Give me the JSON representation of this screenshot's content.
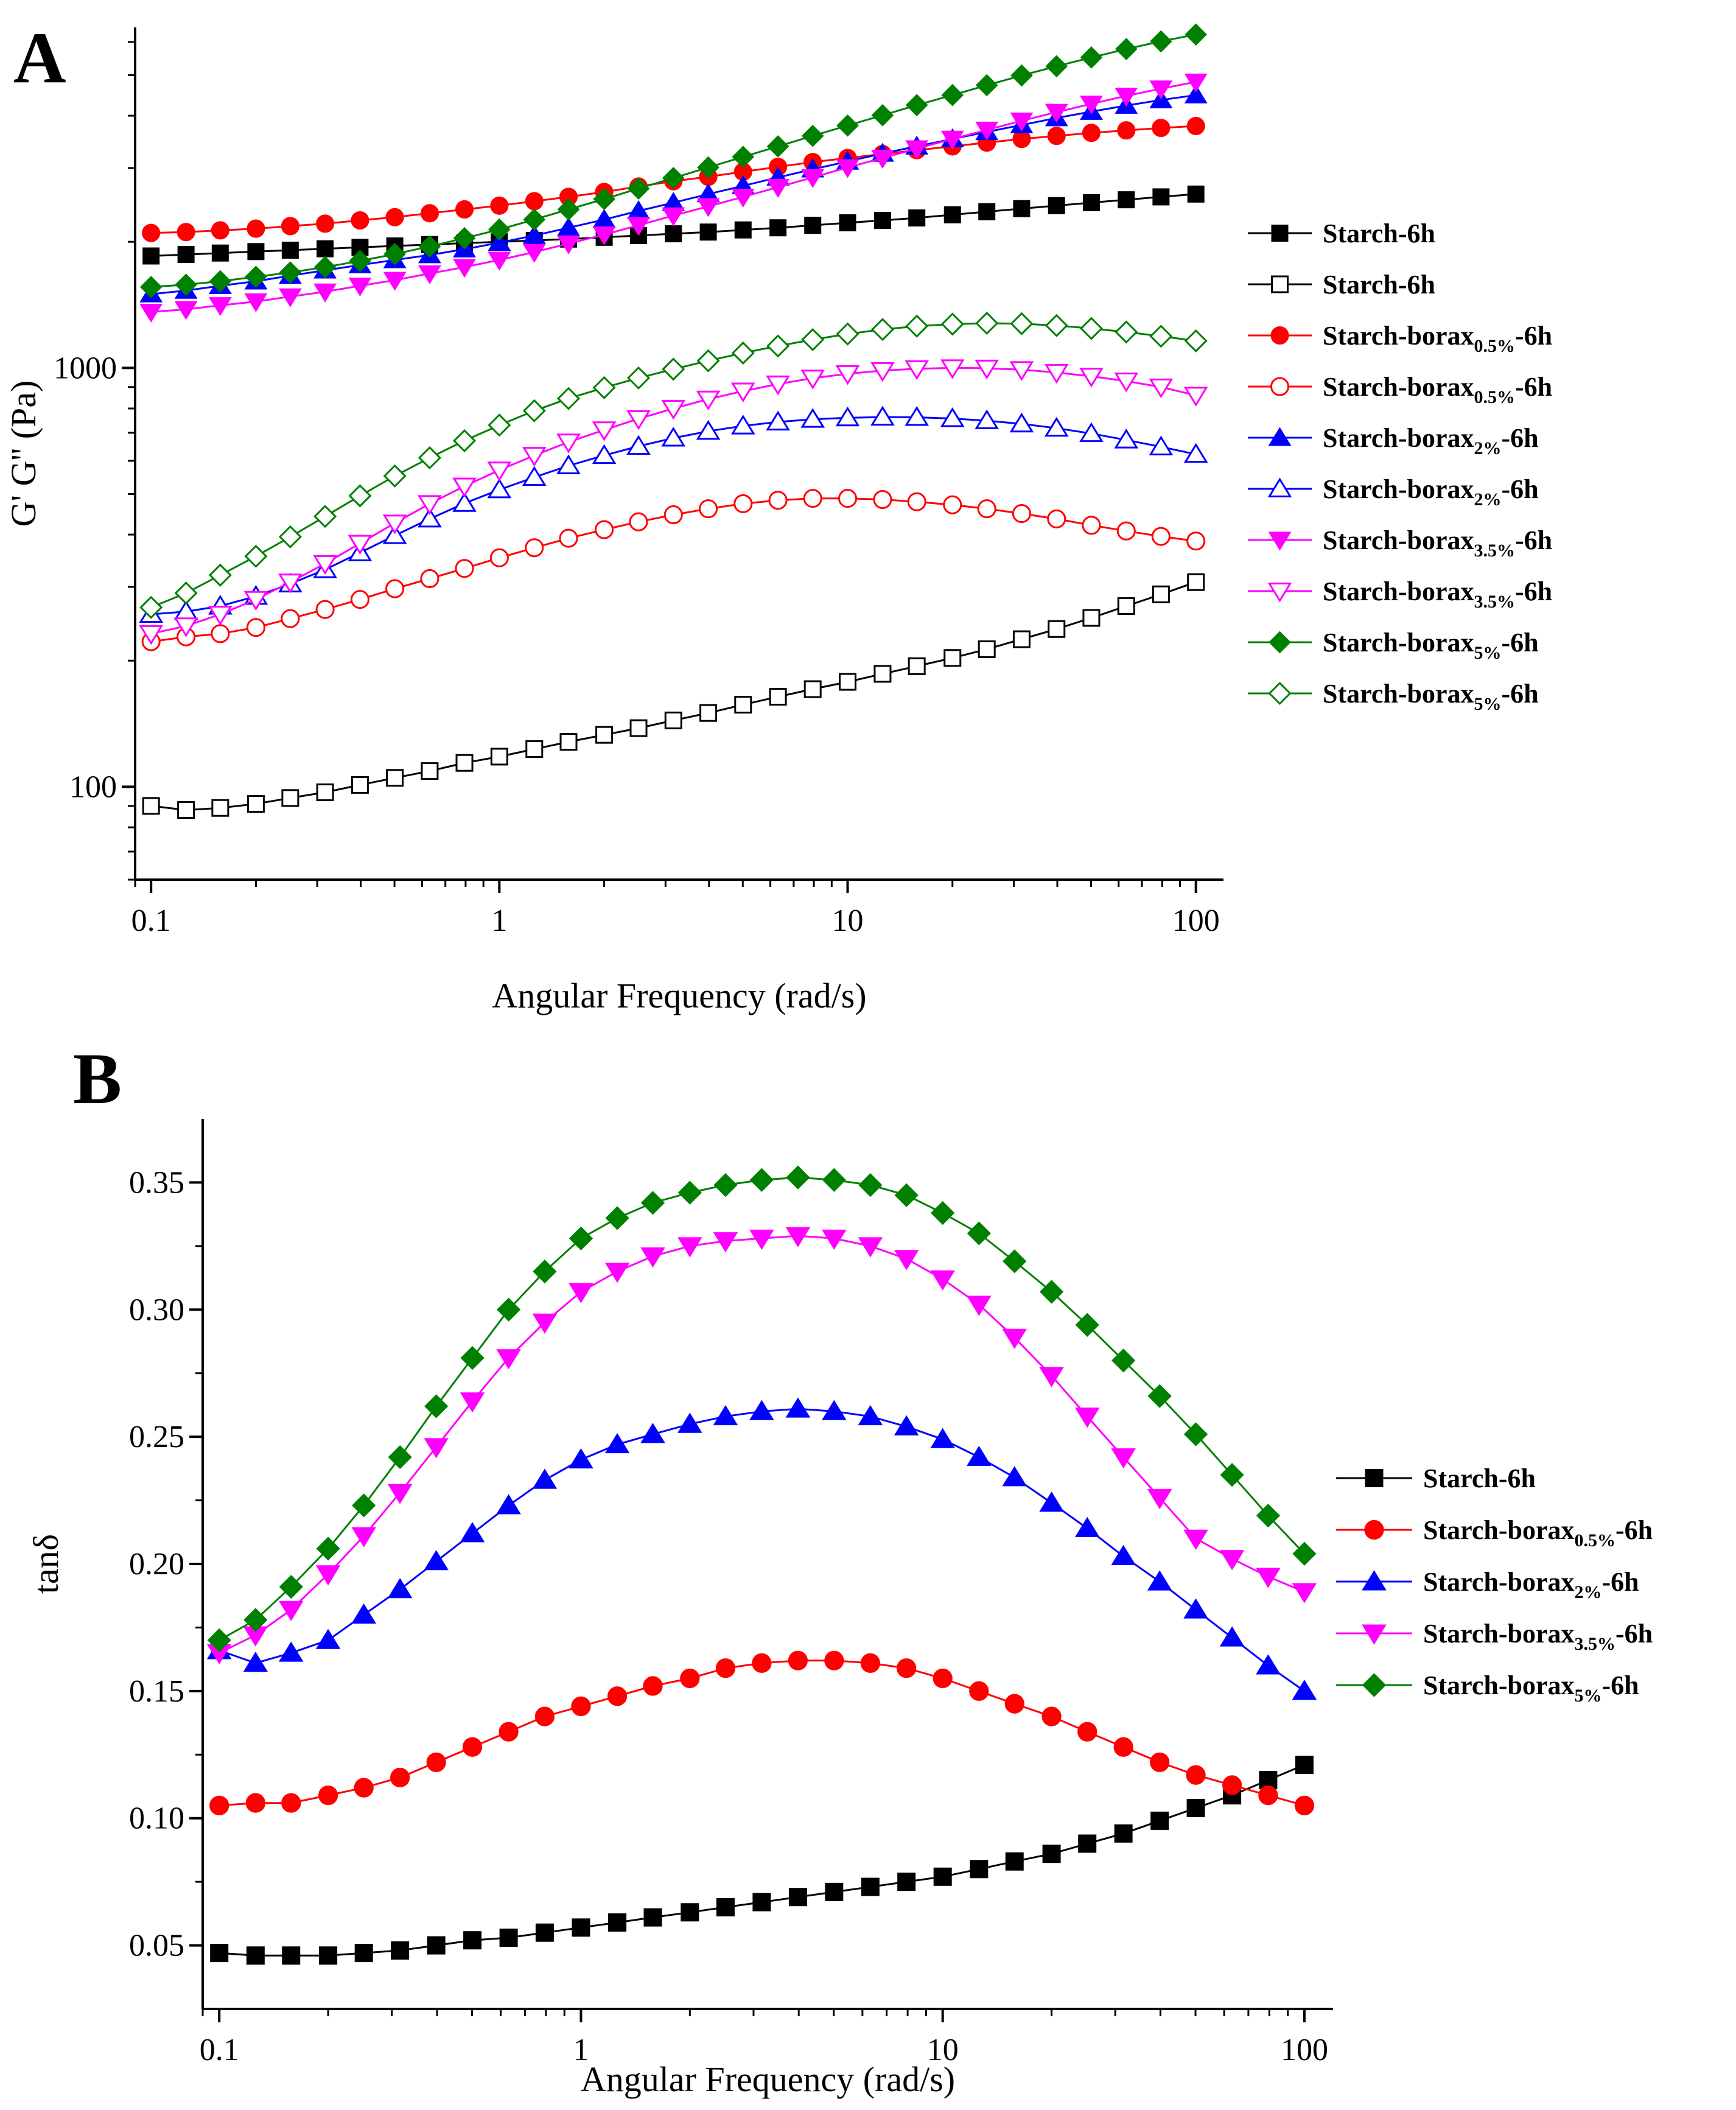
{
  "chart_data": [
    {
      "panel": "A",
      "type": "line",
      "xscale": "log",
      "yscale": "log",
      "xlabel": "Angular Frequency (rad/s)",
      "ylabel": "G' G'' (Pa)",
      "xlim": [
        0.09,
        120
      ],
      "ylim": [
        60,
        6500
      ],
      "xticks": [
        {
          "value": 0.1,
          "label": "0.1"
        },
        {
          "value": 1,
          "label": "1"
        },
        {
          "value": 10,
          "label": "10"
        },
        {
          "value": 100,
          "label": "100"
        }
      ],
      "yticks": [
        {
          "value": 100,
          "label": "100"
        },
        {
          "value": 1000,
          "label": "1000"
        }
      ],
      "legend_position": "right",
      "x": [
        0.1,
        0.126,
        0.158,
        0.2,
        0.251,
        0.316,
        0.398,
        0.501,
        0.631,
        0.794,
        1.0,
        1.26,
        1.58,
        2.0,
        2.51,
        3.16,
        3.98,
        5.01,
        6.31,
        7.94,
        10.0,
        12.6,
        15.8,
        20.0,
        25.1,
        31.6,
        39.8,
        50.1,
        63.1,
        79.4,
        100
      ],
      "series": [
        {
          "name": "Starch-6h",
          "base": "Starch",
          "sub": "",
          "suffix": "-6h",
          "color": "#000000",
          "marker": "square",
          "filled": true,
          "values": [
            1850,
            1865,
            1880,
            1895,
            1910,
            1925,
            1940,
            1955,
            1970,
            1985,
            2000,
            2015,
            2030,
            2050,
            2070,
            2090,
            2110,
            2135,
            2160,
            2190,
            2220,
            2250,
            2280,
            2320,
            2360,
            2400,
            2440,
            2480,
            2520,
            2560,
            2600
          ]
        },
        {
          "name": "Starch-6h",
          "base": "Starch",
          "sub": "",
          "suffix": "-6h",
          "color": "#000000",
          "marker": "square",
          "filled": false,
          "values": [
            90,
            88,
            89,
            91,
            94,
            97,
            101,
            105,
            109,
            114,
            118,
            123,
            128,
            133,
            138,
            144,
            150,
            157,
            164,
            171,
            178,
            186,
            194,
            203,
            213,
            225,
            238,
            253,
            270,
            288,
            308
          ]
        },
        {
          "name": "Starch-borax0.5%-6h",
          "base": "Starch-borax",
          "sub": "0.5%",
          "suffix": "-6h",
          "color": "#ff0000",
          "marker": "circle",
          "filled": true,
          "values": [
            2100,
            2110,
            2130,
            2150,
            2180,
            2210,
            2250,
            2290,
            2340,
            2390,
            2440,
            2500,
            2560,
            2630,
            2710,
            2790,
            2860,
            2940,
            3020,
            3100,
            3170,
            3240,
            3310,
            3380,
            3450,
            3520,
            3580,
            3640,
            3690,
            3740,
            3780
          ]
        },
        {
          "name": "Starch-borax0.5%-6h",
          "base": "Starch-borax",
          "sub": "0.5%",
          "suffix": "-6h",
          "color": "#ff0000",
          "marker": "circle",
          "filled": false,
          "values": [
            222,
            228,
            232,
            240,
            252,
            265,
            280,
            297,
            314,
            332,
            352,
            372,
            392,
            411,
            429,
            446,
            461,
            474,
            483,
            488,
            488,
            485,
            479,
            471,
            461,
            449,
            436,
            421,
            408,
            396,
            386
          ]
        },
        {
          "name": "Starch-borax2%-6h",
          "base": "Starch-borax",
          "sub": "2%",
          "suffix": "-6h",
          "color": "#0000ff",
          "marker": "triangle",
          "filled": true,
          "values": [
            1500,
            1530,
            1570,
            1610,
            1660,
            1710,
            1760,
            1810,
            1860,
            1920,
            1990,
            2070,
            2160,
            2260,
            2370,
            2480,
            2600,
            2720,
            2850,
            2980,
            3110,
            3250,
            3380,
            3520,
            3660,
            3800,
            3950,
            4090,
            4230,
            4360,
            4480
          ]
        },
        {
          "name": "Starch-borax2%-6h",
          "base": "Starch-borax",
          "sub": "2%",
          "suffix": "-6h",
          "color": "#0000ff",
          "marker": "triangle",
          "filled": false,
          "values": [
            258,
            262,
            270,
            285,
            305,
            330,
            362,
            398,
            436,
            475,
            512,
            548,
            584,
            618,
            650,
            680,
            706,
            727,
            743,
            754,
            760,
            763,
            762,
            757,
            748,
            735,
            718,
            697,
            673,
            648,
            622
          ]
        },
        {
          "name": "Starch-borax3.5%-6h",
          "base": "Starch-borax",
          "sub": "3.5%",
          "suffix": "-6h",
          "color": "#ff00ff",
          "marker": "triangle-down",
          "filled": true,
          "values": [
            1360,
            1380,
            1410,
            1440,
            1480,
            1520,
            1570,
            1620,
            1680,
            1740,
            1810,
            1890,
            1980,
            2080,
            2190,
            2310,
            2430,
            2560,
            2700,
            2850,
            3010,
            3170,
            3340,
            3520,
            3700,
            3890,
            4080,
            4270,
            4460,
            4640,
            4820
          ]
        },
        {
          "name": "Starch-borax3.5%-6h",
          "base": "Starch-borax",
          "sub": "3.5%",
          "suffix": "-6h",
          "color": "#ff00ff",
          "marker": "triangle-down",
          "filled": false,
          "values": [
            232,
            242,
            258,
            280,
            308,
            341,
            381,
            426,
            474,
            522,
            570,
            618,
            665,
            711,
            756,
            800,
            842,
            880,
            915,
            945,
            968,
            985,
            995,
            1000,
            998,
            990,
            975,
            955,
            930,
            900,
            860
          ]
        },
        {
          "name": "Starch-borax5%-6h",
          "base": "Starch-borax",
          "sub": "5%",
          "suffix": "-6h",
          "color": "#008000",
          "marker": "diamond",
          "filled": true,
          "values": [
            1560,
            1580,
            1610,
            1650,
            1690,
            1740,
            1800,
            1870,
            1950,
            2040,
            2140,
            2260,
            2390,
            2530,
            2680,
            2840,
            3010,
            3190,
            3380,
            3580,
            3790,
            4010,
            4240,
            4480,
            4730,
            4990,
            5250,
            5510,
            5770,
            6020,
            6250
          ]
        },
        {
          "name": "Starch-borax5%-6h",
          "base": "Starch-borax",
          "sub": "5%",
          "suffix": "-6h",
          "color": "#008000",
          "marker": "diamond",
          "filled": false,
          "values": [
            268,
            290,
            320,
            355,
            395,
            442,
            495,
            552,
            610,
            670,
            730,
            790,
            845,
            897,
            946,
            993,
            1040,
            1085,
            1128,
            1168,
            1205,
            1235,
            1258,
            1272,
            1278,
            1275,
            1262,
            1242,
            1218,
            1190,
            1160
          ]
        }
      ]
    },
    {
      "panel": "B",
      "type": "line",
      "xscale": "log",
      "yscale": "linear",
      "xlabel": "Angular Frequency (rad/s)",
      "ylabel": "tanδ",
      "xlim": [
        0.09,
        120
      ],
      "ylim": [
        0.025,
        0.375
      ],
      "xticks": [
        {
          "value": 0.1,
          "label": "0.1"
        },
        {
          "value": 1,
          "label": "1"
        },
        {
          "value": 10,
          "label": "10"
        },
        {
          "value": 100,
          "label": "100"
        }
      ],
      "yticks": [
        {
          "value": 0.05,
          "label": "0.05"
        },
        {
          "value": 0.1,
          "label": "0.10"
        },
        {
          "value": 0.15,
          "label": "0.15"
        },
        {
          "value": 0.2,
          "label": "0.20"
        },
        {
          "value": 0.25,
          "label": "0.25"
        },
        {
          "value": 0.3,
          "label": "0.30"
        },
        {
          "value": 0.35,
          "label": "0.35"
        }
      ],
      "legend_position": "right",
      "x": [
        0.1,
        0.126,
        0.158,
        0.2,
        0.251,
        0.316,
        0.398,
        0.501,
        0.631,
        0.794,
        1.0,
        1.26,
        1.58,
        2.0,
        2.51,
        3.16,
        3.98,
        5.01,
        6.31,
        7.94,
        10.0,
        12.6,
        15.8,
        20.0,
        25.1,
        31.6,
        39.8,
        50.1,
        63.1,
        79.4,
        100
      ],
      "series": [
        {
          "name": "Starch-6h",
          "base": "Starch",
          "sub": "",
          "suffix": "-6h",
          "color": "#000000",
          "marker": "square",
          "filled": true,
          "values": [
            0.047,
            0.046,
            0.046,
            0.046,
            0.047,
            0.048,
            0.05,
            0.052,
            0.053,
            0.055,
            0.057,
            0.059,
            0.061,
            0.063,
            0.065,
            0.067,
            0.069,
            0.071,
            0.073,
            0.075,
            0.077,
            0.08,
            0.083,
            0.086,
            0.09,
            0.094,
            0.099,
            0.104,
            0.109,
            0.115,
            0.121
          ]
        },
        {
          "name": "Starch-borax0.5%-6h",
          "base": "Starch-borax",
          "sub": "0.5%",
          "suffix": "-6h",
          "color": "#ff0000",
          "marker": "circle",
          "filled": true,
          "values": [
            0.105,
            0.106,
            0.106,
            0.109,
            0.112,
            0.116,
            0.122,
            0.128,
            0.134,
            0.14,
            0.144,
            0.148,
            0.152,
            0.155,
            0.159,
            0.161,
            0.162,
            0.162,
            0.161,
            0.159,
            0.155,
            0.15,
            0.145,
            0.14,
            0.134,
            0.128,
            0.122,
            0.117,
            0.113,
            0.109,
            0.105
          ]
        },
        {
          "name": "Starch-borax2%-6h",
          "base": "Starch-borax",
          "sub": "2%",
          "suffix": "-6h",
          "color": "#0000ff",
          "marker": "triangle",
          "filled": true,
          "values": [
            0.166,
            0.161,
            0.165,
            0.17,
            0.18,
            0.19,
            0.201,
            0.212,
            0.223,
            0.233,
            0.241,
            0.247,
            0.251,
            0.255,
            0.258,
            0.26,
            0.261,
            0.26,
            0.258,
            0.254,
            0.249,
            0.242,
            0.234,
            0.224,
            0.214,
            0.203,
            0.193,
            0.182,
            0.171,
            0.16,
            0.15
          ]
        },
        {
          "name": "Starch-borax3.5%-6h",
          "base": "Starch-borax",
          "sub": "3.5%",
          "suffix": "-6h",
          "color": "#ff00ff",
          "marker": "triangle-down",
          "filled": true,
          "values": [
            0.165,
            0.172,
            0.182,
            0.196,
            0.211,
            0.228,
            0.246,
            0.264,
            0.281,
            0.295,
            0.307,
            0.315,
            0.321,
            0.325,
            0.327,
            0.328,
            0.329,
            0.328,
            0.325,
            0.32,
            0.312,
            0.302,
            0.289,
            0.274,
            0.258,
            0.242,
            0.226,
            0.21,
            0.202,
            0.195,
            0.189
          ]
        },
        {
          "name": "Starch-borax5%-6h",
          "base": "Starch-borax",
          "sub": "5%",
          "suffix": "-6h",
          "color": "#008000",
          "marker": "diamond",
          "filled": true,
          "values": [
            0.17,
            0.178,
            0.191,
            0.206,
            0.223,
            0.242,
            0.262,
            0.281,
            0.3,
            0.315,
            0.328,
            0.336,
            0.342,
            0.346,
            0.349,
            0.351,
            0.352,
            0.351,
            0.349,
            0.345,
            0.338,
            0.33,
            0.319,
            0.307,
            0.294,
            0.28,
            0.266,
            0.251,
            0.235,
            0.219,
            0.204
          ]
        }
      ]
    }
  ],
  "panels": {
    "a_letter": "A",
    "b_letter": "B"
  }
}
